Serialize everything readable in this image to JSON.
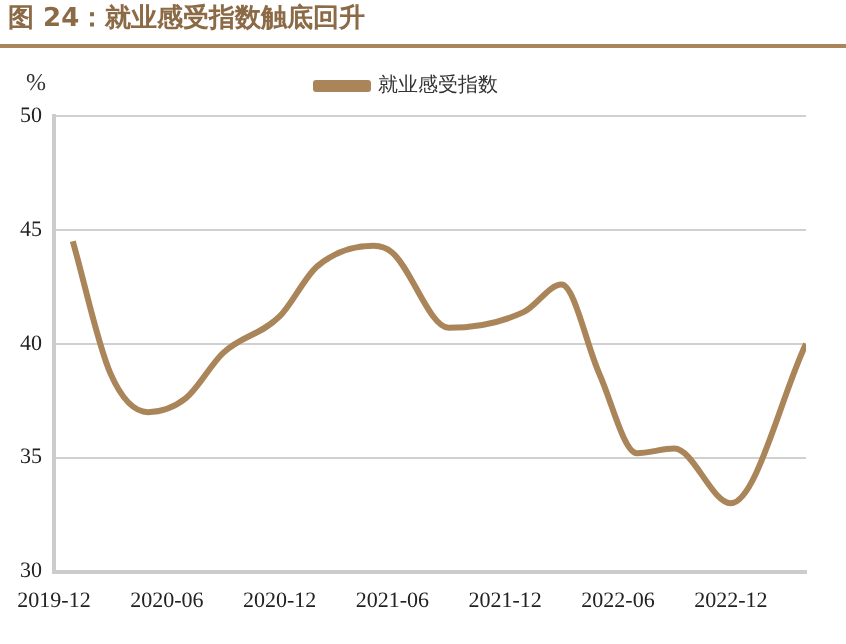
{
  "chart_data": {
    "type": "line",
    "title": "图 24：就业感受指数触底回升",
    "ylabel": "%",
    "x": [
      "2020-01",
      "2020-03",
      "2020-05",
      "2020-07",
      "2020-09",
      "2020-12",
      "2021-02",
      "2021-05",
      "2021-06",
      "2021-09",
      "2022-01",
      "2022-03",
      "2022-05",
      "2022-07",
      "2022-09",
      "2022-12",
      "2023-04"
    ],
    "series": [
      {
        "name": "就业感受指数",
        "color": "#a98559",
        "values": [
          44.5,
          38.7,
          37.0,
          37.6,
          39.6,
          41.2,
          43.4,
          44.3,
          44.0,
          40.7,
          41.4,
          42.6,
          38.7,
          35.2,
          35.4,
          33.0,
          40.0
        ]
      }
    ],
    "xlim": [
      "2019-12",
      "2023-04"
    ],
    "xticks": [
      "2019-12",
      "2020-06",
      "2020-12",
      "2021-06",
      "2021-12",
      "2022-06",
      "2022-12"
    ],
    "ylim": [
      30,
      50
    ],
    "yticks": [
      30,
      35,
      40,
      45,
      50
    ],
    "grid": "y",
    "legend": "top",
    "marker": "none",
    "line_style": "solid"
  }
}
